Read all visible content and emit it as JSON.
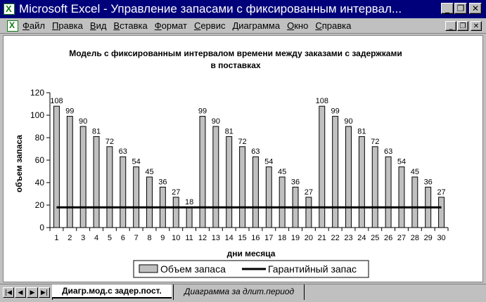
{
  "window": {
    "title": "Microsoft Excel - Управление запасами с фиксированным интервал...",
    "minimize_glyph": "_",
    "restore_glyph": "❐",
    "close_glyph": "✕"
  },
  "menu": {
    "items": [
      "Файл",
      "Правка",
      "Вид",
      "Вставка",
      "Формат",
      "Сервис",
      "Диаграмма",
      "Окно",
      "Справка"
    ],
    "doc_minimize_glyph": "_",
    "doc_restore_glyph": "❐",
    "doc_close_glyph": "✕"
  },
  "chart_data": {
    "type": "bar",
    "title_line1": "Модель с фиксированным интервалом времени между заказами с задержками",
    "title_line2": "в поставках",
    "xlabel": "дни месяца",
    "ylabel": "объем запаса",
    "categories": [
      "1",
      "2",
      "3",
      "4",
      "5",
      "6",
      "7",
      "8",
      "9",
      "10",
      "11",
      "12",
      "13",
      "14",
      "15",
      "16",
      "17",
      "18",
      "19",
      "20",
      "21",
      "22",
      "23",
      "24",
      "25",
      "26",
      "27",
      "28",
      "29",
      "30"
    ],
    "series": [
      {
        "name": "Объем запаса",
        "type": "bar",
        "color": "#c0c0c0",
        "values": [
          108,
          99,
          90,
          81,
          72,
          63,
          54,
          45,
          36,
          27,
          18,
          99,
          90,
          81,
          72,
          63,
          54,
          45,
          36,
          27,
          108,
          99,
          90,
          81,
          72,
          63,
          54,
          45,
          36,
          27
        ]
      },
      {
        "name": "Гарантийный запас",
        "type": "line",
        "color": "#000000",
        "values": [
          18,
          18,
          18,
          18,
          18,
          18,
          18,
          18,
          18,
          18,
          18,
          18,
          18,
          18,
          18,
          18,
          18,
          18,
          18,
          18,
          18,
          18,
          18,
          18,
          18,
          18,
          18,
          18,
          18,
          18
        ]
      }
    ],
    "ylim": [
      0,
      120
    ],
    "yticks": [
      0,
      20,
      40,
      60,
      80,
      100,
      120
    ],
    "grid": false,
    "legend": "bottom"
  },
  "sheets": {
    "nav_glyphs": [
      "|◀",
      "◀",
      "▶",
      "▶|"
    ],
    "tabs": [
      "Диагр.мод.с задер.пост.",
      "Диаграмма за длит.период"
    ],
    "active_index": 0
  }
}
